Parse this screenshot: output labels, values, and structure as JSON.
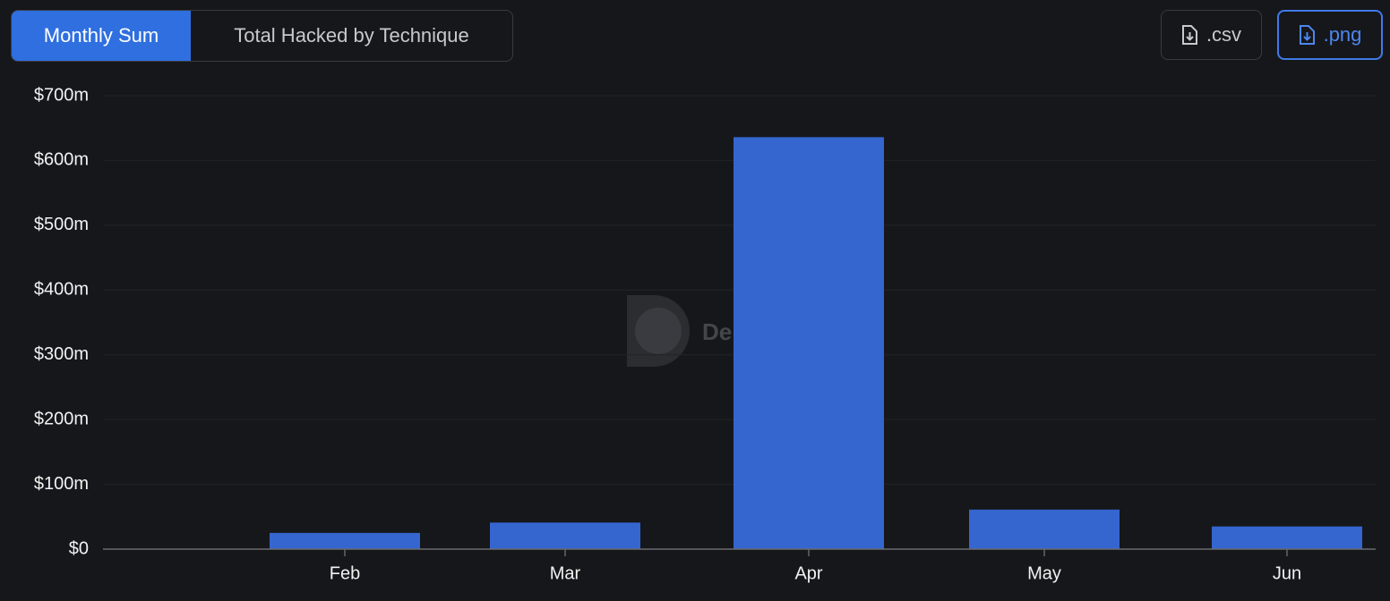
{
  "tabs": [
    "Monthly Sum",
    "Total Hacked by Technique"
  ],
  "buttons": [
    ".csv",
    ".png"
  ],
  "chart_data": {
    "type": "bar",
    "watermark": "De",
    "categories": [
      "Feb",
      "Mar",
      "Apr",
      "May",
      "Jun"
    ],
    "values": [
      25,
      41,
      636,
      61,
      35
    ],
    "color": "#3565cf",
    "ylim": [
      0,
      700
    ],
    "yticks": [
      {
        "value": 0,
        "label": "$0"
      },
      {
        "value": 100,
        "label": "$100m"
      },
      {
        "value": 200,
        "label": "$200m"
      },
      {
        "value": 300,
        "label": "$300m"
      },
      {
        "value": 400,
        "label": "$400m"
      },
      {
        "value": 500,
        "label": "$500m"
      },
      {
        "value": 600,
        "label": "$600m"
      },
      {
        "value": 700,
        "label": "$700m"
      }
    ],
    "grid": true
  }
}
